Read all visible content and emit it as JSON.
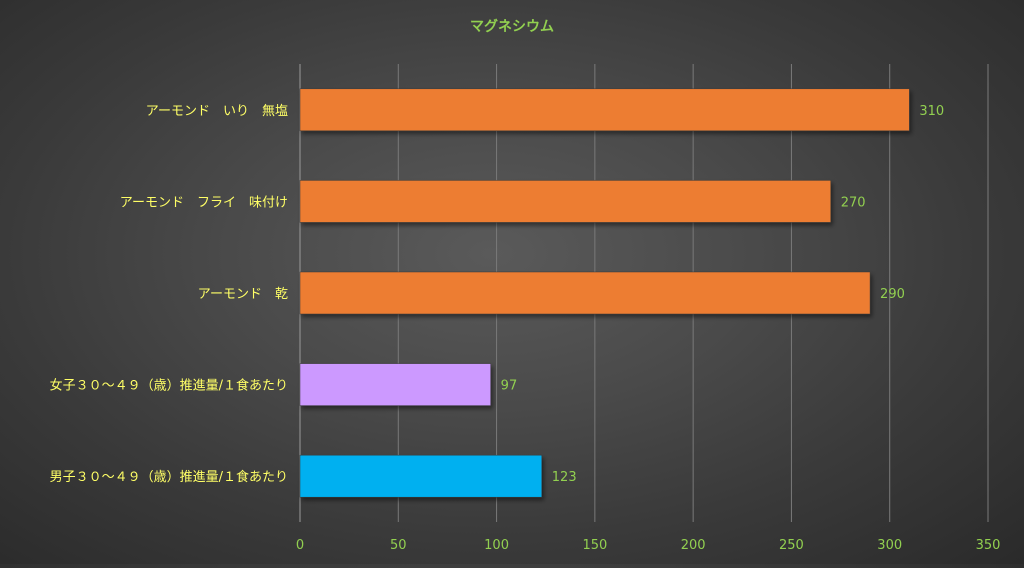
{
  "chart_data": {
    "type": "bar",
    "orientation": "horizontal",
    "title": "マグネシウム",
    "categories": [
      "アーモンド　いり　無塩",
      "アーモンド　フライ　味付け",
      "アーモンド　乾",
      "女子３０～４９（歳）推進量/１食あたり",
      "男子３０～４９（歳）推進量/１食あたり"
    ],
    "values": [
      310,
      270,
      290,
      97,
      123
    ],
    "bar_colors": [
      "#ed7d31",
      "#ed7d31",
      "#ed7d31",
      "#cc99ff",
      "#00b0f0"
    ],
    "xlim": [
      0,
      350
    ],
    "xticks": [
      0,
      50,
      100,
      150,
      200,
      250,
      300,
      350
    ],
    "grid": true,
    "legend": "none",
    "colors": {
      "title": "#92d050",
      "category_label": "#ffff66",
      "tick_label": "#92d050",
      "data_label": "#92d050",
      "gridline": "#7a7a7a"
    }
  }
}
